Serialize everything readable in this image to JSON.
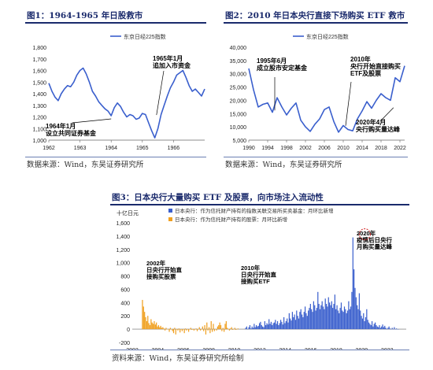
{
  "colors": {
    "blue": "#3a5fcd",
    "orange": "#f0a020",
    "header": "#1a2a6c",
    "annot": "#000000",
    "red_circle": "#d02020"
  },
  "fig1": {
    "title": "图1：1964-1965 年日股救市",
    "source": "数据来源：Wind，东吴证券研究所"
  },
  "fig2": {
    "title": "图2：2010 年日本央行直接下场购买 ETF 救市",
    "source": "数据来源：Wind，东吴证券研究所"
  },
  "fig3": {
    "title": "图3：日本央行大量购买 ETF 及股票，向市场注入流动性",
    "source": "资料来源：Wind，东吴证券研究所绘制"
  },
  "chart_data": [
    {
      "type": "line",
      "series": [
        {
          "name": "东京日经225指数"
        }
      ],
      "x": [
        1962.0,
        1962.1,
        1962.2,
        1962.3,
        1962.4,
        1962.5,
        1962.6,
        1962.7,
        1962.8,
        1962.9,
        1963.0,
        1963.1,
        1963.2,
        1963.3,
        1963.4,
        1963.5,
        1963.6,
        1963.7,
        1963.8,
        1963.9,
        1964.0,
        1964.1,
        1964.2,
        1964.3,
        1964.4,
        1964.5,
        1964.6,
        1964.7,
        1964.8,
        1964.9,
        1965.0,
        1965.1,
        1965.2,
        1965.3,
        1965.4,
        1965.5,
        1965.6,
        1965.7,
        1965.8,
        1965.9,
        1966.0,
        1966.1,
        1966.2,
        1966.3,
        1966.4,
        1966.5,
        1966.6,
        1966.7,
        1966.8,
        1966.9,
        1967.0
      ],
      "y": [
        1490,
        1420,
        1370,
        1340,
        1400,
        1440,
        1470,
        1460,
        1500,
        1560,
        1600,
        1620,
        1570,
        1500,
        1420,
        1380,
        1330,
        1300,
        1270,
        1250,
        1210,
        1280,
        1320,
        1290,
        1240,
        1200,
        1220,
        1210,
        1180,
        1190,
        1230,
        1220,
        1150,
        1080,
        1020,
        1100,
        1220,
        1300,
        1380,
        1450,
        1500,
        1560,
        1580,
        1600,
        1540,
        1470,
        1420,
        1440,
        1410,
        1380,
        1440
      ],
      "xlim": [
        1962,
        1967
      ],
      "ylim": [
        1000,
        1800
      ],
      "yticks": [
        "1,000",
        "1,100",
        "1,200",
        "1,300",
        "1,400",
        "1,500",
        "1,600",
        "1,700",
        "1,800"
      ],
      "xticks": [
        "1962",
        "1963",
        "1964",
        "1965",
        "1966"
      ],
      "legend": "东京日经225指数",
      "annotations": [
        {
          "text": "1964年1月\n设立共同证券基金",
          "x": 1964.0,
          "y": 1210
        },
        {
          "text": "1965年1月\n追加入市资金",
          "x": 1965.0,
          "y": 1230
        }
      ]
    },
    {
      "type": "line",
      "series": [
        {
          "name": "东京日经225指数"
        }
      ],
      "x": [
        1990,
        1991,
        1992,
        1993,
        1994,
        1995,
        1996,
        1997,
        1998,
        1999,
        2000,
        2001,
        2002,
        2003,
        2004,
        2005,
        2006,
        2007,
        2008,
        2009,
        2010,
        2011,
        2012,
        2013,
        2014,
        2015,
        2016,
        2017,
        2018,
        2019,
        2020,
        2021,
        2022,
        2023
      ],
      "y": [
        32000,
        24000,
        17500,
        18500,
        19000,
        15500,
        21000,
        17500,
        14500,
        17000,
        19000,
        12500,
        10000,
        8300,
        11000,
        13000,
        16500,
        17500,
        12000,
        8000,
        10500,
        9000,
        8500,
        13000,
        16000,
        19500,
        17000,
        20000,
        22500,
        21000,
        20000,
        28500,
        27000,
        33000
      ],
      "xlim": [
        1990,
        2023
      ],
      "ylim": [
        5000,
        40000
      ],
      "yticks": [
        "5,000",
        "10,000",
        "15,000",
        "20,000",
        "25,000",
        "30,000",
        "35,000",
        "40,000"
      ],
      "xticks": [
        "1990",
        "1994",
        "1998",
        "2002",
        "2006",
        "2010",
        "2014",
        "2018",
        "2022"
      ],
      "legend": "东京日经225指数",
      "annotations": [
        {
          "text": "1995年6月\n成立股市安定基金",
          "x": 1995.5,
          "y": 15000
        },
        {
          "text": "2010年\n央行开始直接购买\nETF及股票",
          "x": 2010.5,
          "y": 9500
        },
        {
          "text": "2020年4月\n央行购买量达峰",
          "x": 2020.3,
          "y": 19000
        }
      ]
    },
    {
      "type": "bar",
      "ylabel": "十亿日元",
      "ylim": [
        -200,
        1600
      ],
      "yticks": [
        "-200",
        "0",
        "200",
        "400",
        "600",
        "800",
        "1,000",
        "1,200",
        "1,400",
        "1,600"
      ],
      "xticks": [
        "2002",
        "2004",
        "2006",
        "2008",
        "2010",
        "2012",
        "2014",
        "2016",
        "2018",
        "2020",
        "2022"
      ],
      "xlim": [
        2002,
        2023.5
      ],
      "series": [
        {
          "name": "日本央行：作为信托财产持有的指数关联交易所买卖基金：月环比新增",
          "color": "blue",
          "x_start": 2010.9,
          "x_end": 2022.9,
          "months": 145,
          "values": [
            20,
            40,
            0,
            30,
            60,
            10,
            40,
            20,
            80,
            30,
            60,
            40,
            50,
            90,
            110,
            60,
            40,
            30,
            120,
            60,
            90,
            70,
            150,
            80,
            110,
            60,
            90,
            100,
            140,
            80,
            120,
            60,
            90,
            140,
            110,
            70,
            180,
            90,
            120,
            160,
            100,
            240,
            160,
            130,
            260,
            180,
            220,
            140,
            280,
            200,
            160,
            260,
            300,
            220,
            180,
            260,
            340,
            240,
            200,
            280,
            320,
            380,
            300,
            260,
            420,
            360,
            280,
            320,
            560,
            380,
            300,
            360,
            420,
            340,
            300,
            460,
            380,
            340,
            480,
            400,
            360,
            420,
            320,
            380,
            520,
            300,
            360,
            280,
            240,
            320,
            400,
            280,
            260,
            340,
            300,
            240,
            280,
            420,
            300,
            340,
            560,
            1380,
            900,
            620,
            480,
            360,
            300,
            540,
            280,
            200,
            160,
            240,
            120,
            180,
            300,
            140,
            100,
            80,
            60,
            120,
            40,
            80,
            100,
            60,
            40,
            30,
            60,
            20,
            40,
            70,
            30,
            50,
            20,
            0,
            20,
            40,
            10,
            0,
            20,
            0,
            30,
            0,
            10,
            0,
            0
          ]
        },
        {
          "name": "日本央行：作为信托财产持有的股票：月环比新增",
          "color": "orange",
          "x_start": 2002.8,
          "x_end": 2010.3,
          "months": 90,
          "values": [
            440,
            340,
            260,
            180,
            120,
            200,
            90,
            60,
            150,
            100,
            80,
            120,
            70,
            100,
            40,
            60,
            30,
            50,
            20,
            30,
            10,
            -20,
            20,
            0,
            0,
            -40,
            20,
            0,
            -30,
            -60,
            20,
            -80,
            0,
            -20,
            10,
            -50,
            0,
            -30,
            0,
            -60,
            10,
            -20,
            0,
            -40,
            0,
            20,
            -10,
            0,
            -20,
            0,
            10,
            -30,
            0,
            30,
            -20,
            0,
            40,
            -30,
            60,
            -80,
            100,
            -20,
            30,
            -60,
            120,
            -40,
            80,
            -30,
            0,
            -20,
            40,
            60,
            100,
            60,
            -30,
            20,
            -40,
            80,
            120,
            20,
            0,
            -20,
            10,
            30,
            -10,
            0,
            20,
            -10,
            0,
            10
          ]
        }
      ],
      "annotations": [
        {
          "text": "2002年\n日央行开始直\n接购买股票",
          "x": 2003.0,
          "y": 550
        },
        {
          "text": "2010年\n日央行开始直\n接购买ETF",
          "x": 2011.0,
          "y": 430
        },
        {
          "text": "2020年\n疫情后日央行\n月购买量达峰",
          "x": 2020.8,
          "y": 1350
        }
      ]
    }
  ]
}
